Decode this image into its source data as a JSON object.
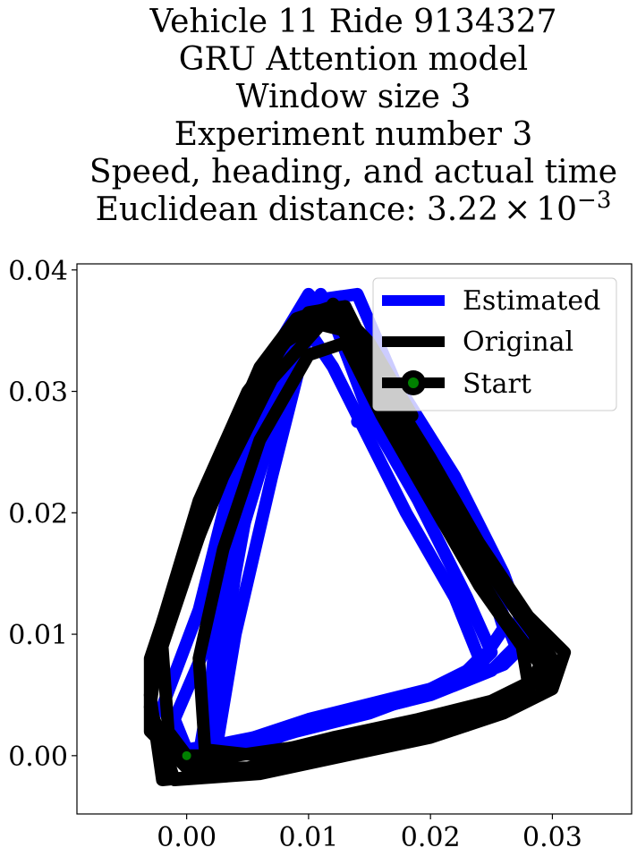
{
  "chart_data": {
    "type": "line",
    "title_lines": [
      "Vehicle 11 Ride 9134327",
      "GRU Attention model",
      "Window size 3",
      "Experiment number 3",
      "Speed, heading, and actual time",
      "Euclidean distance: "
    ],
    "distance_mantissa": "3.22",
    "distance_times": "×",
    "distance_base": "10",
    "distance_exponent": "−3",
    "xlim": [
      -0.009,
      0.0365
    ],
    "ylim": [
      -0.0048,
      0.0405
    ],
    "x_ticks": [
      0.0,
      0.01,
      0.02,
      0.03
    ],
    "y_ticks": [
      0.0,
      0.01,
      0.02,
      0.03,
      0.04
    ],
    "x_tick_labels": [
      "0.00",
      "0.01",
      "0.02",
      "0.03"
    ],
    "y_tick_labels": [
      "0.00",
      "0.01",
      "0.02",
      "0.03",
      "0.04"
    ],
    "legend_position": "top-right",
    "legend": [
      "Estimated",
      "Original",
      "Start"
    ],
    "series": [
      {
        "name": "Estimated",
        "color": "#0000ff",
        "loops": [
          [
            [
              0.0,
              0.0
            ],
            [
              0.002,
              0.0
            ],
            [
              0.006,
              0.0015
            ],
            [
              0.012,
              0.003
            ],
            [
              0.018,
              0.0045
            ],
            [
              0.023,
              0.0065
            ],
            [
              0.025,
              0.0085
            ],
            [
              0.023,
              0.013
            ],
            [
              0.019,
              0.021
            ],
            [
              0.015,
              0.028
            ],
            [
              0.012,
              0.036
            ],
            [
              0.01,
              0.038
            ],
            [
              0.007,
              0.033
            ],
            [
              0.004,
              0.024
            ],
            [
              0.001,
              0.012
            ],
            [
              -0.002,
              0.004
            ],
            [
              0.0,
              0.0
            ]
          ],
          [
            [
              0.0,
              0.0005
            ],
            [
              0.003,
              0.001
            ],
            [
              0.008,
              0.002
            ],
            [
              0.014,
              0.0035
            ],
            [
              0.02,
              0.005
            ],
            [
              0.025,
              0.007
            ],
            [
              0.027,
              0.009
            ],
            [
              0.025,
              0.014
            ],
            [
              0.021,
              0.022
            ],
            [
              0.016,
              0.03
            ],
            [
              0.013,
              0.037
            ],
            [
              0.011,
              0.037
            ],
            [
              0.008,
              0.03
            ],
            [
              0.005,
              0.02
            ],
            [
              0.002,
              0.01
            ],
            [
              -0.001,
              0.003
            ],
            [
              0.0,
              0.0005
            ]
          ],
          [
            [
              0.001,
              0.0
            ],
            [
              0.005,
              0.0005
            ],
            [
              0.01,
              0.0025
            ],
            [
              0.016,
              0.004
            ],
            [
              0.021,
              0.0055
            ],
            [
              0.026,
              0.0075
            ],
            [
              0.028,
              0.0095
            ],
            [
              0.026,
              0.015
            ],
            [
              0.022,
              0.023
            ],
            [
              0.017,
              0.031
            ],
            [
              0.014,
              0.038
            ],
            [
              0.0105,
              0.0375
            ],
            [
              0.006,
              0.028
            ],
            [
              0.003,
              0.016
            ],
            [
              0.002,
              0.006
            ],
            [
              0.001,
              0.0
            ]
          ],
          [
            [
              0.0015,
              0.0005
            ],
            [
              0.004,
              0.0005
            ],
            [
              0.009,
              0.002
            ],
            [
              0.015,
              0.0035
            ],
            [
              0.019,
              0.005
            ],
            [
              0.024,
              0.0075
            ],
            [
              0.026,
              0.0105
            ],
            [
              0.024,
              0.017
            ],
            [
              0.02,
              0.024
            ],
            [
              0.016,
              0.031
            ],
            [
              0.013,
              0.036
            ],
            [
              0.009,
              0.036
            ],
            [
              0.006,
              0.026
            ],
            [
              0.004,
              0.015
            ],
            [
              0.0025,
              0.005
            ],
            [
              0.0015,
              0.0005
            ]
          ],
          [
            [
              0.0025,
              0.001
            ],
            [
              0.004,
              0.001
            ],
            [
              0.01,
              0.003
            ],
            [
              0.016,
              0.0045
            ],
            [
              0.022,
              0.006
            ],
            [
              0.024,
              0.008
            ],
            [
              0.022,
              0.013
            ],
            [
              0.018,
              0.02
            ],
            [
              0.015,
              0.026
            ],
            [
              0.012,
              0.032
            ],
            [
              0.01,
              0.035
            ],
            [
              0.007,
              0.023
            ],
            [
              0.004,
              0.01
            ],
            [
              0.0025,
              0.001
            ]
          ],
          [
            [
              0.014,
              0.0275
            ],
            [
              0.016,
              0.0272
            ],
            [
              0.013,
              0.035
            ],
            [
              0.011,
              0.038
            ]
          ]
        ]
      },
      {
        "name": "Original",
        "color": "#000000",
        "loops": [
          [
            [
              0.0,
              -0.001
            ],
            [
              0.005,
              -0.001
            ],
            [
              0.012,
              0.0005
            ],
            [
              0.019,
              0.002
            ],
            [
              0.025,
              0.0035
            ],
            [
              0.029,
              0.005
            ],
            [
              0.03,
              0.008
            ],
            [
              0.027,
              0.012
            ],
            [
              0.023,
              0.018
            ],
            [
              0.019,
              0.025
            ],
            [
              0.015,
              0.032
            ],
            [
              0.012,
              0.037
            ],
            [
              0.009,
              0.036
            ],
            [
              0.006,
              0.032
            ],
            [
              0.003,
              0.025
            ],
            [
              0.0,
              0.017
            ],
            [
              -0.003,
              0.008
            ],
            [
              -0.003,
              0.002
            ],
            [
              0.0,
              -0.001
            ]
          ],
          [
            [
              -0.001,
              -0.002
            ],
            [
              0.006,
              -0.0015
            ],
            [
              0.013,
              0.0
            ],
            [
              0.02,
              0.0015
            ],
            [
              0.026,
              0.0035
            ],
            [
              0.03,
              0.0055
            ],
            [
              0.031,
              0.0085
            ],
            [
              0.028,
              0.0115
            ],
            [
              0.024,
              0.0175
            ],
            [
              0.02,
              0.0245
            ],
            [
              0.016,
              0.031
            ],
            [
              0.013,
              0.037
            ],
            [
              0.01,
              0.0365
            ],
            [
              0.005,
              0.03
            ],
            [
              0.001,
              0.021
            ],
            [
              -0.002,
              0.011
            ],
            [
              -0.003,
              0.004
            ],
            [
              -0.001,
              -0.002
            ]
          ],
          [
            [
              0.0,
              0.0
            ],
            [
              0.004,
              0.0
            ],
            [
              0.011,
              0.001
            ],
            [
              0.018,
              0.0025
            ],
            [
              0.024,
              0.004
            ],
            [
              0.028,
              0.0055
            ],
            [
              0.029,
              0.0075
            ],
            [
              0.026,
              0.0115
            ],
            [
              0.022,
              0.018
            ],
            [
              0.018,
              0.025
            ],
            [
              0.0145,
              0.032
            ],
            [
              0.012,
              0.0365
            ],
            [
              0.008,
              0.034
            ],
            [
              0.004,
              0.027
            ],
            [
              0.001,
              0.018
            ],
            [
              -0.002,
              0.009
            ],
            [
              -0.0015,
              0.002
            ],
            [
              0.0,
              0.0
            ]
          ],
          [
            [
              -0.002,
              -0.002
            ],
            [
              0.003,
              -0.0015
            ],
            [
              0.01,
              -0.0005
            ],
            [
              0.017,
              0.001
            ],
            [
              0.023,
              0.0025
            ],
            [
              0.027,
              0.0045
            ],
            [
              0.0295,
              0.007
            ],
            [
              0.0285,
              0.01
            ],
            [
              0.025,
              0.015
            ],
            [
              0.021,
              0.021
            ],
            [
              0.017,
              0.028
            ],
            [
              0.013,
              0.035
            ],
            [
              0.011,
              0.0355
            ],
            [
              0.007,
              0.031
            ],
            [
              0.003,
              0.023
            ],
            [
              -0.001,
              0.013
            ],
            [
              -0.003,
              0.005
            ],
            [
              -0.002,
              -0.002
            ]
          ],
          [
            [
              0.0015,
              0.0005
            ],
            [
              0.006,
              0.0
            ],
            [
              0.012,
              0.0015
            ],
            [
              0.019,
              0.003
            ],
            [
              0.025,
              0.0045
            ],
            [
              0.028,
              0.006
            ],
            [
              0.0275,
              0.009
            ],
            [
              0.024,
              0.014
            ],
            [
              0.02,
              0.021
            ],
            [
              0.016,
              0.028
            ],
            [
              0.013,
              0.034
            ],
            [
              0.01,
              0.033
            ],
            [
              0.006,
              0.026
            ],
            [
              0.003,
              0.017
            ],
            [
              0.001,
              0.008
            ],
            [
              0.0015,
              0.0005
            ]
          ],
          [
            [
              0.0165,
              0.0272
            ],
            [
              0.0185,
              0.028
            ],
            [
              0.015,
              0.034
            ],
            [
              0.012,
              0.0372
            ]
          ]
        ]
      },
      {
        "name": "Start",
        "color": "#008000",
        "point": [
          0.0,
          0.0
        ]
      }
    ]
  }
}
